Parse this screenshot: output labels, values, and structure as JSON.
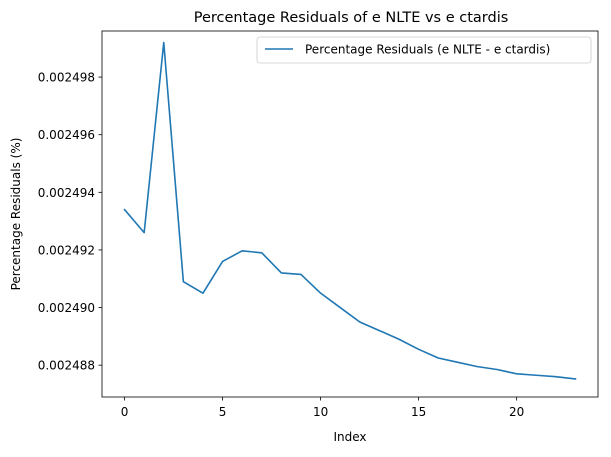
{
  "chart_data": {
    "type": "line",
    "title": "Percentage Residuals of e NLTE vs e ctardis",
    "xlabel": "Index",
    "ylabel": "Percentage Residuals (%)",
    "xlim": [
      -1.15,
      24.15
    ],
    "ylim": [
      0.002486895,
      0.0024996
    ],
    "x_ticks": [
      0,
      5,
      10,
      15,
      20
    ],
    "x_tick_labels": [
      "0",
      "5",
      "10",
      "15",
      "20"
    ],
    "y_ticks": [
      0.002488,
      0.00249,
      0.002492,
      0.002494,
      0.002496,
      0.002498
    ],
    "y_tick_labels": [
      "0.002488",
      "0.002490",
      "0.002492",
      "0.002494",
      "0.002496",
      "0.002498"
    ],
    "grid": false,
    "legend_position": "top-right",
    "series": [
      {
        "name": "Percentage Residuals (e NLTE - e ctardis)",
        "color": "#1f77b4",
        "x": [
          0,
          1,
          2,
          3,
          4,
          5,
          6,
          7,
          8,
          9,
          10,
          11,
          12,
          13,
          14,
          15,
          16,
          17,
          18,
          19,
          20,
          21,
          22,
          23
        ],
        "y": [
          0.0024934,
          0.0024926,
          0.0024992,
          0.0024909,
          0.0024905,
          0.0024916,
          0.00249197,
          0.0024919,
          0.0024912,
          0.00249115,
          0.0024905,
          0.00249,
          0.0024895,
          0.0024892,
          0.0024889,
          0.00248855,
          0.00248825,
          0.0024881,
          0.00248795,
          0.00248785,
          0.0024877,
          0.00248765,
          0.0024876,
          0.00248752
        ]
      }
    ]
  }
}
